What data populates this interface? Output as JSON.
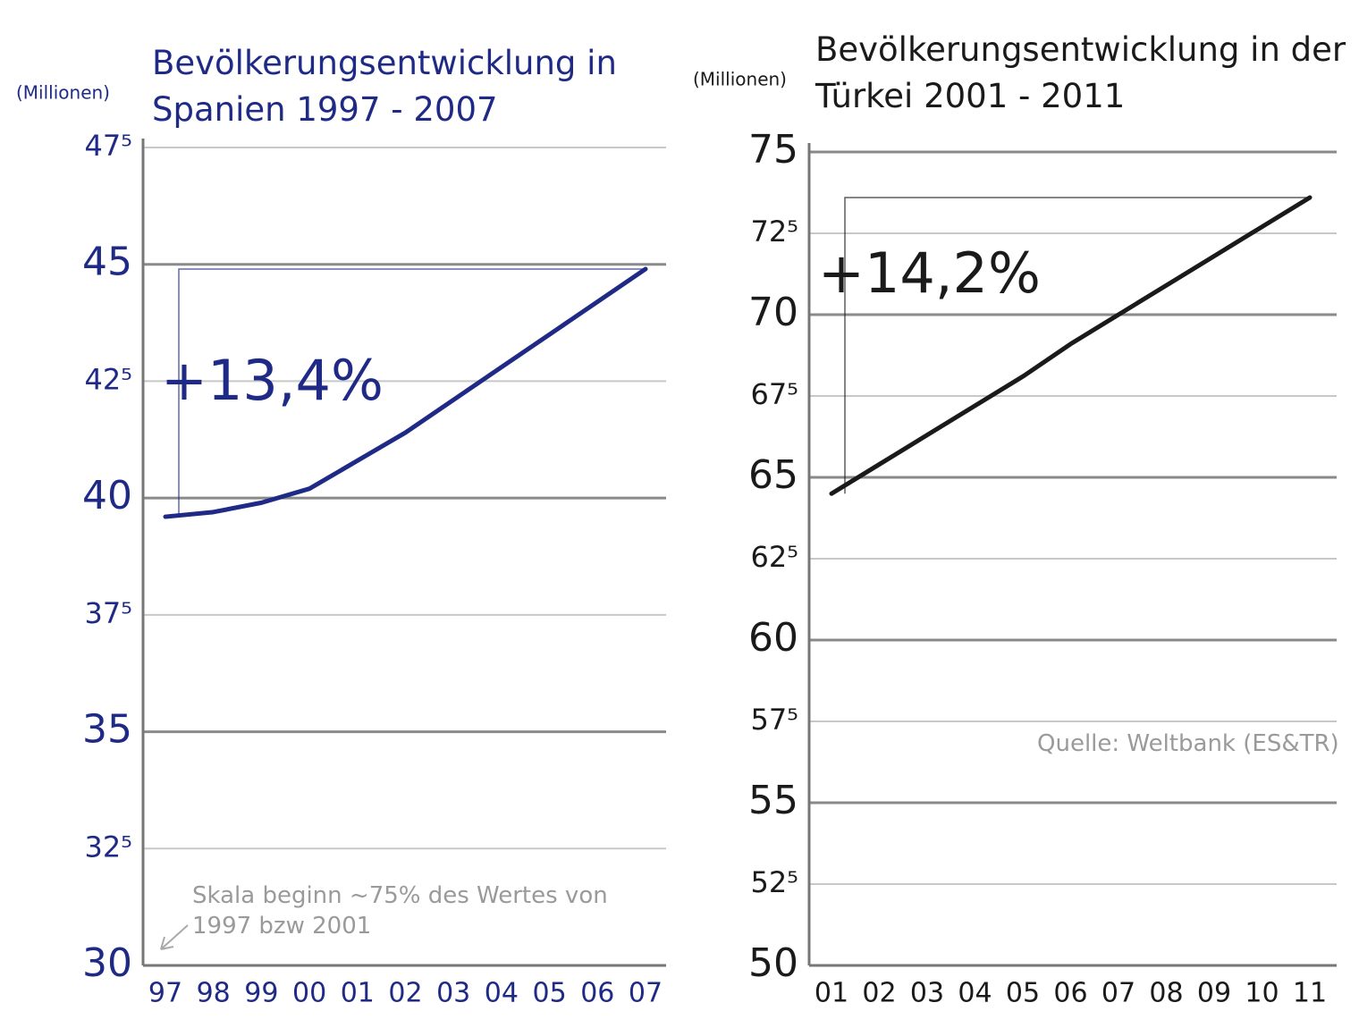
{
  "chart_data": [
    {
      "type": "line",
      "title": "Bevölkerungsentwicklung in Spanien 1997 - 2007",
      "y_label": "(Millionen)",
      "annotation": "+13,4%",
      "note": "Skala beginn ~75% des Wertes von 1997 bzw 2001",
      "categories": [
        "97",
        "98",
        "99",
        "00",
        "01",
        "02",
        "03",
        "04",
        "05",
        "06",
        "07"
      ],
      "values": [
        39.6,
        39.7,
        39.9,
        40.2,
        40.8,
        41.4,
        42.1,
        42.8,
        43.5,
        44.2,
        44.9
      ],
      "color": "#1f2a86",
      "ylim": [
        30,
        47.5
      ],
      "yticks": [
        30,
        {
          "value": 32.5,
          "label": "32⁵"
        },
        35,
        {
          "value": 37.5,
          "label": "37⁵"
        },
        40,
        {
          "value": 42.5,
          "label": "42⁵"
        },
        45,
        {
          "value": 47.5,
          "label": "47⁵"
        }
      ],
      "grid": true
    },
    {
      "type": "line",
      "title": "Bevölkerungsentwicklung in der Türkei 2001 - 2011",
      "y_label": "(Millionen)",
      "annotation": "+14,2%",
      "note": "Quelle: Weltbank (ES&TR)",
      "categories": [
        "01",
        "02",
        "03",
        "04",
        "05",
        "06",
        "07",
        "08",
        "09",
        "10",
        "11"
      ],
      "values": [
        64.5,
        65.4,
        66.3,
        67.2,
        68.1,
        69.1,
        70.0,
        70.9,
        71.8,
        72.7,
        73.6
      ],
      "color": "#1a1a1a",
      "ylim": [
        50,
        75
      ],
      "yticks": [
        50,
        {
          "value": 52.5,
          "label": "52⁵"
        },
        55,
        {
          "value": 57.5,
          "label": "57⁵"
        },
        60,
        {
          "value": 62.5,
          "label": "62⁵"
        },
        65,
        {
          "value": 67.5,
          "label": "67⁵"
        },
        70,
        {
          "value": 72.5,
          "label": "72⁵"
        },
        75
      ],
      "grid": true
    }
  ]
}
